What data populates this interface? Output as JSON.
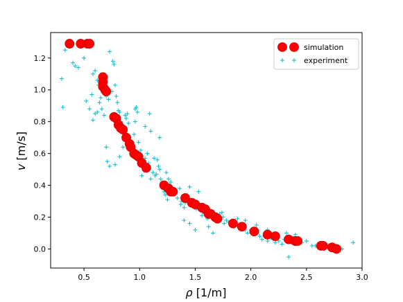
{
  "chart_data": {
    "type": "scatter",
    "xlabel_symbol": "ρ",
    "xlabel_unit": " [1/m]",
    "ylabel_symbol": "v",
    "ylabel_unit": " [m/s]",
    "xlim": [
      0.2,
      3.0
    ],
    "ylim": [
      -0.12,
      1.36
    ],
    "xticks": [
      0.5,
      1.0,
      1.5,
      2.0,
      2.5,
      3.0
    ],
    "yticks": [
      0.0,
      0.2,
      0.4,
      0.6,
      0.8,
      1.0,
      1.2
    ],
    "grid": false,
    "legend_position": "top-right",
    "series": [
      {
        "name": "simulation",
        "marker": "circle",
        "color": "#ff0000",
        "edge_color": "#cc0000",
        "points": [
          [
            0.37,
            1.29
          ],
          [
            0.47,
            1.29
          ],
          [
            0.53,
            1.29
          ],
          [
            0.55,
            1.29
          ],
          [
            0.67,
            1.08
          ],
          [
            0.67,
            1.05
          ],
          [
            0.67,
            1.02
          ],
          [
            0.69,
            1.0
          ],
          [
            0.7,
            0.99
          ],
          [
            0.77,
            0.83
          ],
          [
            0.79,
            0.82
          ],
          [
            0.81,
            0.78
          ],
          [
            0.83,
            0.76
          ],
          [
            0.85,
            0.75
          ],
          [
            0.88,
            0.7
          ],
          [
            0.91,
            0.66
          ],
          [
            0.92,
            0.64
          ],
          [
            0.95,
            0.6
          ],
          [
            0.97,
            0.59
          ],
          [
            0.99,
            0.58
          ],
          [
            1.02,
            0.54
          ],
          [
            1.06,
            0.51
          ],
          [
            1.22,
            0.4
          ],
          [
            1.26,
            0.38
          ],
          [
            1.28,
            0.36
          ],
          [
            1.3,
            0.36
          ],
          [
            1.41,
            0.32
          ],
          [
            1.47,
            0.29
          ],
          [
            1.5,
            0.28
          ],
          [
            1.56,
            0.26
          ],
          [
            1.59,
            0.25
          ],
          [
            1.62,
            0.22
          ],
          [
            1.64,
            0.22
          ],
          [
            1.68,
            0.2
          ],
          [
            1.7,
            0.19
          ],
          [
            1.84,
            0.16
          ],
          [
            1.92,
            0.14
          ],
          [
            2.03,
            0.11
          ],
          [
            2.15,
            0.09
          ],
          [
            2.22,
            0.08
          ],
          [
            2.34,
            0.06
          ],
          [
            2.4,
            0.05
          ],
          [
            2.42,
            0.05
          ],
          [
            2.63,
            0.02
          ],
          [
            2.65,
            0.02
          ],
          [
            2.73,
            0.01
          ],
          [
            2.77,
            0.0
          ]
        ]
      },
      {
        "name": "experiment",
        "marker": "plus",
        "color": "#17becf",
        "points": [
          [
            0.3,
            1.07
          ],
          [
            0.31,
            0.89
          ],
          [
            0.33,
            1.25
          ],
          [
            0.4,
            1.17
          ],
          [
            0.42,
            1.15
          ],
          [
            0.45,
            1.14
          ],
          [
            0.48,
            1.3
          ],
          [
            0.5,
            1.2
          ],
          [
            0.52,
            1.28
          ],
          [
            0.55,
            1.27
          ],
          [
            0.58,
            1.1
          ],
          [
            0.6,
            1.12
          ],
          [
            0.62,
            1.06
          ],
          [
            0.63,
            1.03
          ],
          [
            0.65,
            0.95
          ],
          [
            0.52,
            0.93
          ],
          [
            0.55,
            0.88
          ],
          [
            0.57,
            0.97
          ],
          [
            0.58,
            0.81
          ],
          [
            0.6,
            0.85
          ],
          [
            0.62,
            0.86
          ],
          [
            0.64,
            0.92
          ],
          [
            0.66,
            0.88
          ],
          [
            0.68,
            0.84
          ],
          [
            0.7,
            0.96
          ],
          [
            0.72,
            0.94
          ],
          [
            0.73,
            1.24
          ],
          [
            0.75,
            0.99
          ],
          [
            0.76,
            1.18
          ],
          [
            0.77,
            1.16
          ],
          [
            0.78,
            1.03
          ],
          [
            0.79,
            0.96
          ],
          [
            0.8,
            0.92
          ],
          [
            0.81,
            0.87
          ],
          [
            0.82,
            0.86
          ],
          [
            0.83,
            0.8
          ],
          [
            0.84,
            0.77
          ],
          [
            0.85,
            0.74
          ],
          [
            0.86,
            0.7
          ],
          [
            0.87,
            0.84
          ],
          [
            0.88,
            0.82
          ],
          [
            0.89,
            0.85
          ],
          [
            0.9,
            0.71
          ],
          [
            0.91,
            0.66
          ],
          [
            0.92,
            0.62
          ],
          [
            0.93,
            0.6
          ],
          [
            0.94,
            0.58
          ],
          [
            0.95,
            0.72
          ],
          [
            0.96,
            0.88
          ],
          [
            0.97,
            0.89
          ],
          [
            0.98,
            0.86
          ],
          [
            0.99,
            0.67
          ],
          [
            1.0,
            0.56
          ],
          [
            1.01,
            0.62
          ],
          [
            1.02,
            0.55
          ],
          [
            1.03,
            0.52
          ],
          [
            1.04,
            0.49
          ],
          [
            1.05,
            0.57
          ],
          [
            1.06,
            0.5
          ],
          [
            1.07,
            0.6
          ],
          [
            1.08,
            0.54
          ],
          [
            1.09,
            0.85
          ],
          [
            1.1,
            0.44
          ],
          [
            1.12,
            0.48
          ],
          [
            1.14,
            0.46
          ],
          [
            1.15,
            0.47
          ],
          [
            1.16,
            0.56
          ],
          [
            1.17,
            0.52
          ],
          [
            1.18,
            0.5
          ],
          [
            1.19,
            0.44
          ],
          [
            1.2,
            0.42
          ],
          [
            1.21,
            0.38
          ],
          [
            1.22,
            0.36
          ],
          [
            1.23,
            0.34
          ],
          [
            1.24,
            0.48
          ],
          [
            1.25,
            0.31
          ],
          [
            1.26,
            0.44
          ],
          [
            1.27,
            0.4
          ],
          [
            1.28,
            0.42
          ],
          [
            1.29,
            0.36
          ],
          [
            1.3,
            0.35
          ],
          [
            1.32,
            0.36
          ],
          [
            1.34,
            0.32
          ],
          [
            1.36,
            0.38
          ],
          [
            1.37,
            0.28
          ],
          [
            1.38,
            0.3
          ],
          [
            1.4,
            0.26
          ],
          [
            1.41,
            0.29
          ],
          [
            1.42,
            0.32
          ],
          [
            1.43,
            0.34
          ],
          [
            1.45,
            0.39
          ],
          [
            1.46,
            0.31
          ],
          [
            1.48,
            0.27
          ],
          [
            1.5,
            0.29
          ],
          [
            1.51,
            0.25
          ],
          [
            1.53,
            0.36
          ],
          [
            1.55,
            0.24
          ],
          [
            1.56,
            0.21
          ],
          [
            1.57,
            0.23
          ],
          [
            1.58,
            0.24
          ],
          [
            1.6,
            0.22
          ],
          [
            1.61,
            0.19
          ],
          [
            1.62,
            0.2
          ],
          [
            1.64,
            0.24
          ],
          [
            1.65,
            0.22
          ],
          [
            1.66,
            0.21
          ],
          [
            1.67,
            0.21
          ],
          [
            1.68,
            0.18
          ],
          [
            1.7,
            0.2
          ],
          [
            1.72,
            0.22
          ],
          [
            1.74,
            0.23
          ],
          [
            1.76,
            0.16
          ],
          [
            1.78,
            0.18
          ],
          [
            1.8,
            0.17
          ],
          [
            1.82,
            0.15
          ],
          [
            1.85,
            0.14
          ],
          [
            1.87,
            0.16
          ],
          [
            1.9,
            0.13
          ],
          [
            1.93,
            0.15
          ],
          [
            1.95,
            0.12
          ],
          [
            1.97,
            0.1
          ],
          [
            2.0,
            0.12
          ],
          [
            2.02,
            0.09
          ],
          [
            2.05,
            0.1
          ],
          [
            2.08,
            0.08
          ],
          [
            2.1,
            0.06
          ],
          [
            2.12,
            0.08
          ],
          [
            2.15,
            0.05
          ],
          [
            2.18,
            0.07
          ],
          [
            2.2,
            0.06
          ],
          [
            2.22,
            0.04
          ],
          [
            2.25,
            0.05
          ],
          [
            2.28,
            0.03
          ],
          [
            2.3,
            0.06
          ],
          [
            2.32,
            0.1
          ],
          [
            2.34,
            -0.05
          ],
          [
            2.36,
            0.04
          ],
          [
            2.38,
            0.07
          ],
          [
            2.4,
            0.03
          ],
          [
            2.44,
            0.06
          ],
          [
            2.46,
            0.04
          ],
          [
            2.5,
            0.05
          ],
          [
            2.55,
            0.02
          ],
          [
            2.58,
            0.02
          ],
          [
            2.62,
            0.01
          ],
          [
            2.66,
            0.0
          ],
          [
            2.7,
            0.02
          ],
          [
            2.74,
            -0.01
          ],
          [
            2.78,
            0.01
          ],
          [
            2.82,
            0.0
          ],
          [
            2.92,
            0.04
          ],
          [
            1.18,
            0.7
          ],
          [
            1.1,
            0.74
          ],
          [
            1.05,
            0.77
          ],
          [
            0.96,
            0.8
          ],
          [
            0.9,
            0.79
          ],
          [
            0.85,
            0.64
          ],
          [
            0.82,
            0.58
          ],
          [
            0.7,
            0.64
          ],
          [
            0.71,
            0.55
          ],
          [
            0.73,
            0.52
          ],
          [
            0.78,
            0.53
          ],
          [
            1.13,
            0.57
          ],
          [
            1.02,
            0.46
          ],
          [
            1.4,
            0.18
          ],
          [
            1.45,
            0.16
          ],
          [
            1.5,
            0.12
          ],
          [
            1.62,
            0.14
          ],
          [
            1.66,
            0.1
          ],
          [
            1.75,
            0.2
          ],
          [
            1.88,
            0.19
          ],
          [
            1.95,
            0.18
          ],
          [
            2.05,
            0.15
          ],
          [
            2.15,
            0.12
          ],
          [
            2.4,
            0.09
          ]
        ]
      }
    ]
  }
}
